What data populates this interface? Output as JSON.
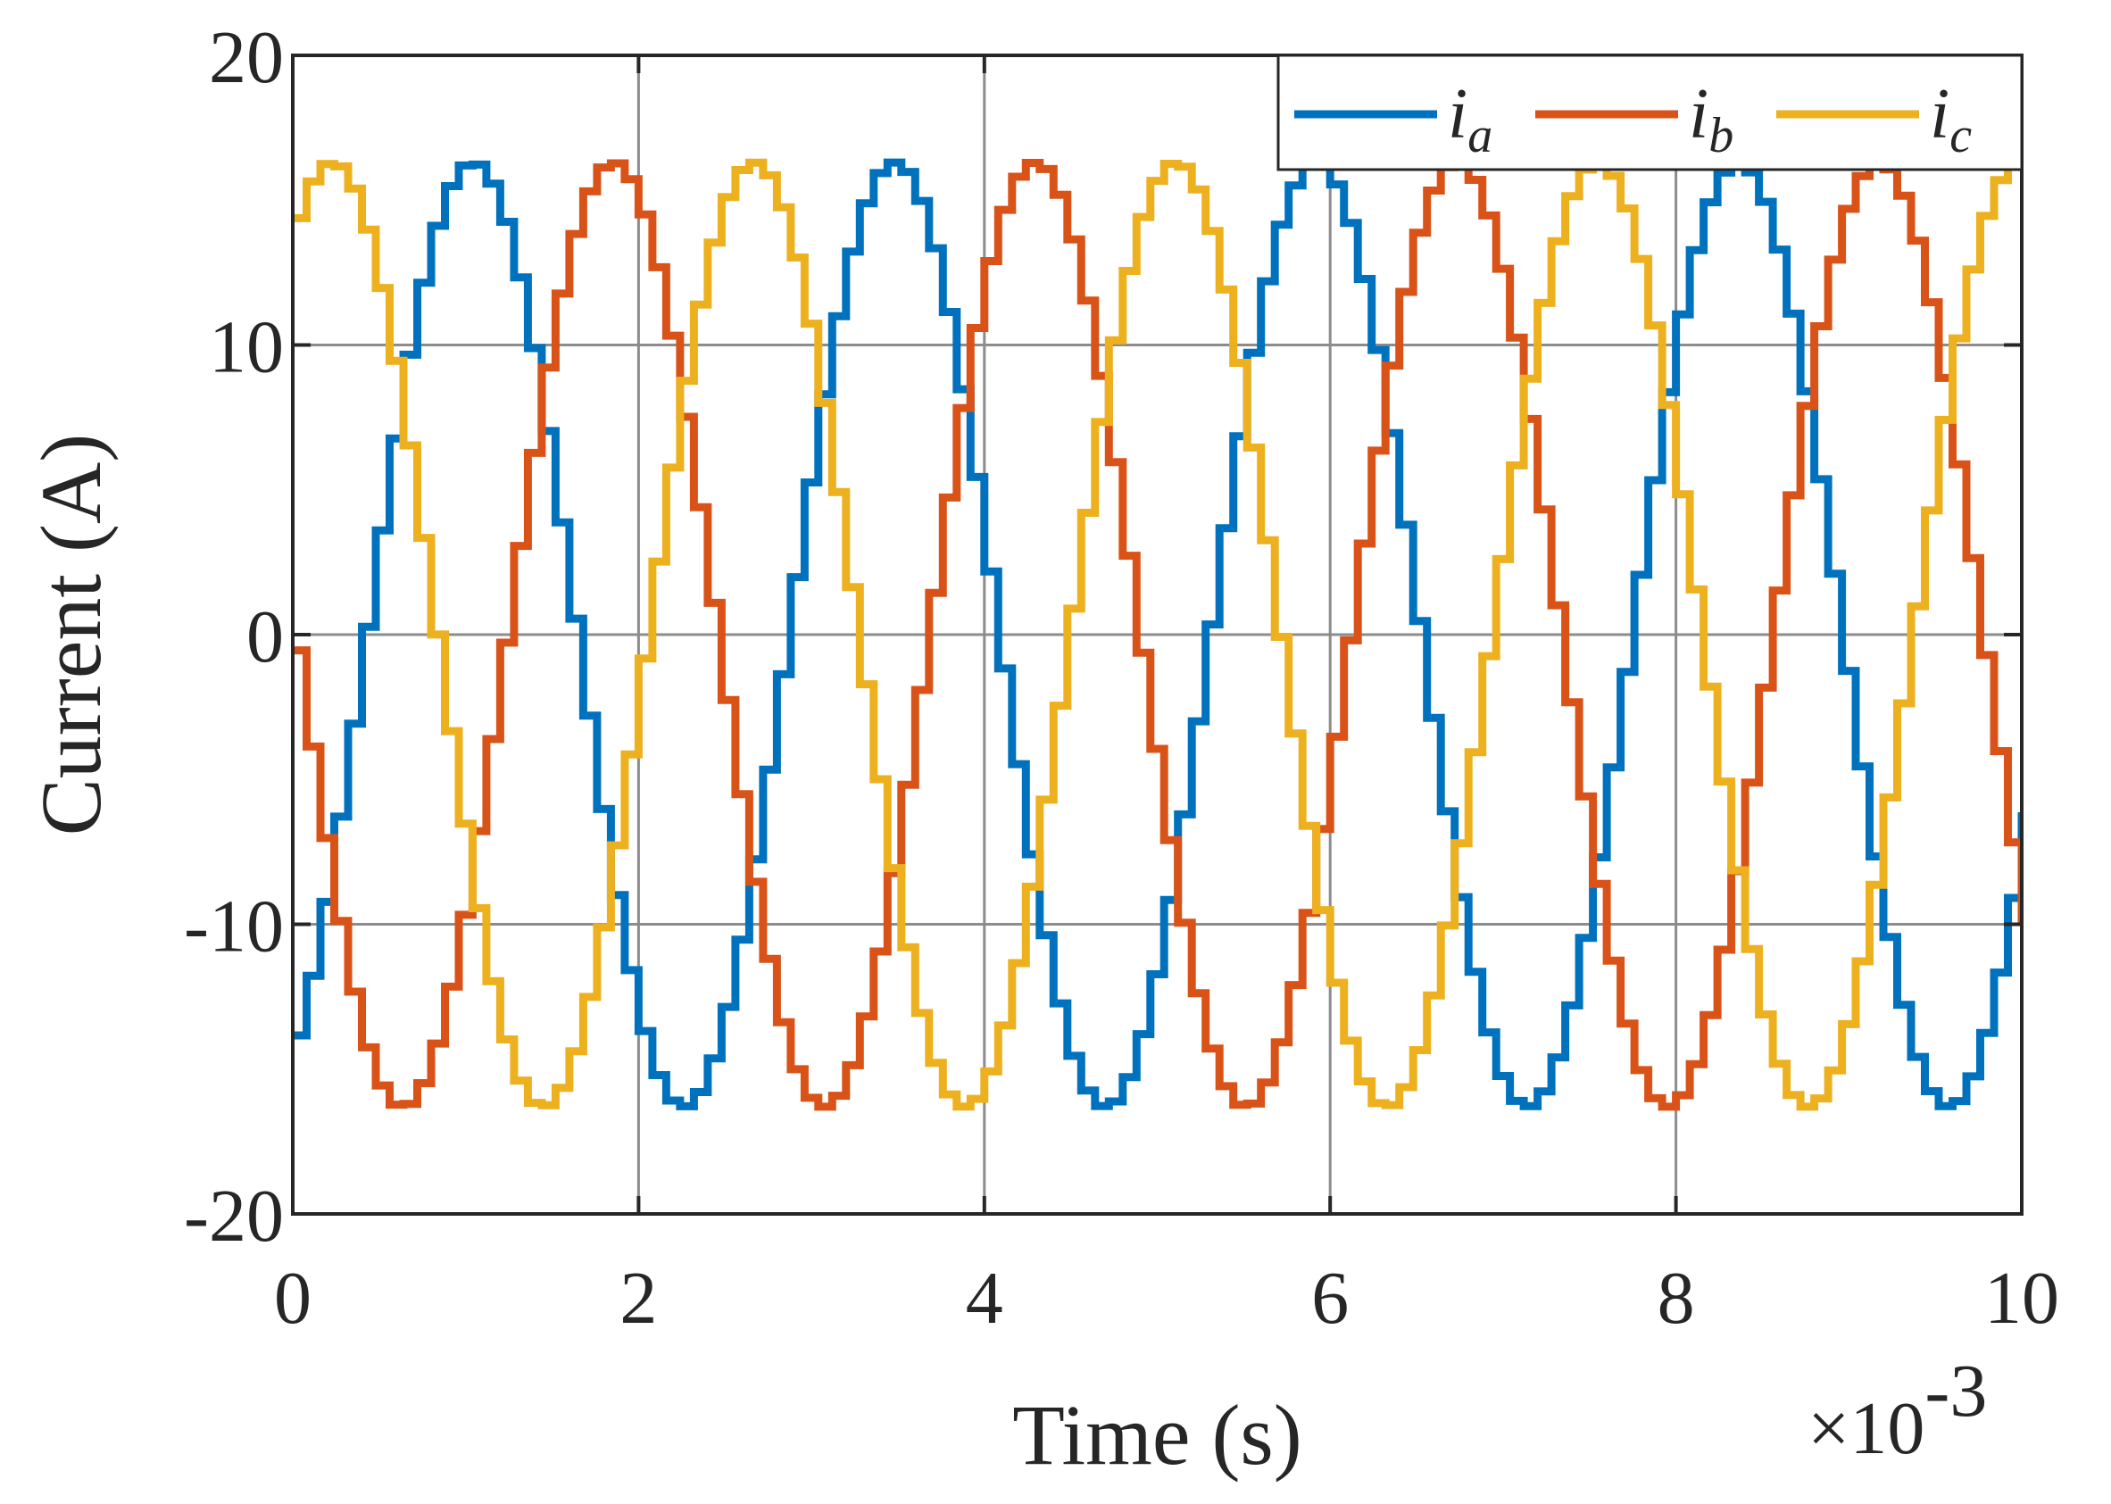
{
  "chart_data": {
    "type": "line",
    "title": "",
    "xlabel": "Time (s)",
    "ylabel": "Current (A)",
    "x_exponent_label": "×10",
    "x_exponent_power": "-3",
    "xlim": [
      0,
      10
    ],
    "ylim": [
      -20,
      20
    ],
    "x_ticks": [
      0,
      2,
      4,
      6,
      8,
      10
    ],
    "x_tick_labels": [
      "0",
      "2",
      "4",
      "6",
      "8",
      "10"
    ],
    "y_ticks": [
      -20,
      -10,
      0,
      10,
      20
    ],
    "y_tick_labels": [
      "-20",
      "-10",
      "0",
      "10",
      "20"
    ],
    "grid": true,
    "legend_position": "top-right",
    "legend_layout": "horizontal",
    "step_size": 0.08,
    "series": [
      {
        "name": "i_a",
        "symbol": "i",
        "subscript": "a",
        "color": "#0072BD",
        "amplitude": 16.3,
        "frequency_per_ms": 0.41,
        "phase_deg": -64
      },
      {
        "name": "i_b",
        "symbol": "i",
        "subscript": "b",
        "color": "#D95319",
        "amplitude": 16.3,
        "frequency_per_ms": 0.41,
        "phase_deg": 176
      },
      {
        "name": "i_c",
        "symbol": "i",
        "subscript": "c",
        "color": "#EDB120",
        "amplitude": 16.3,
        "frequency_per_ms": 0.41,
        "phase_deg": 56
      }
    ]
  }
}
